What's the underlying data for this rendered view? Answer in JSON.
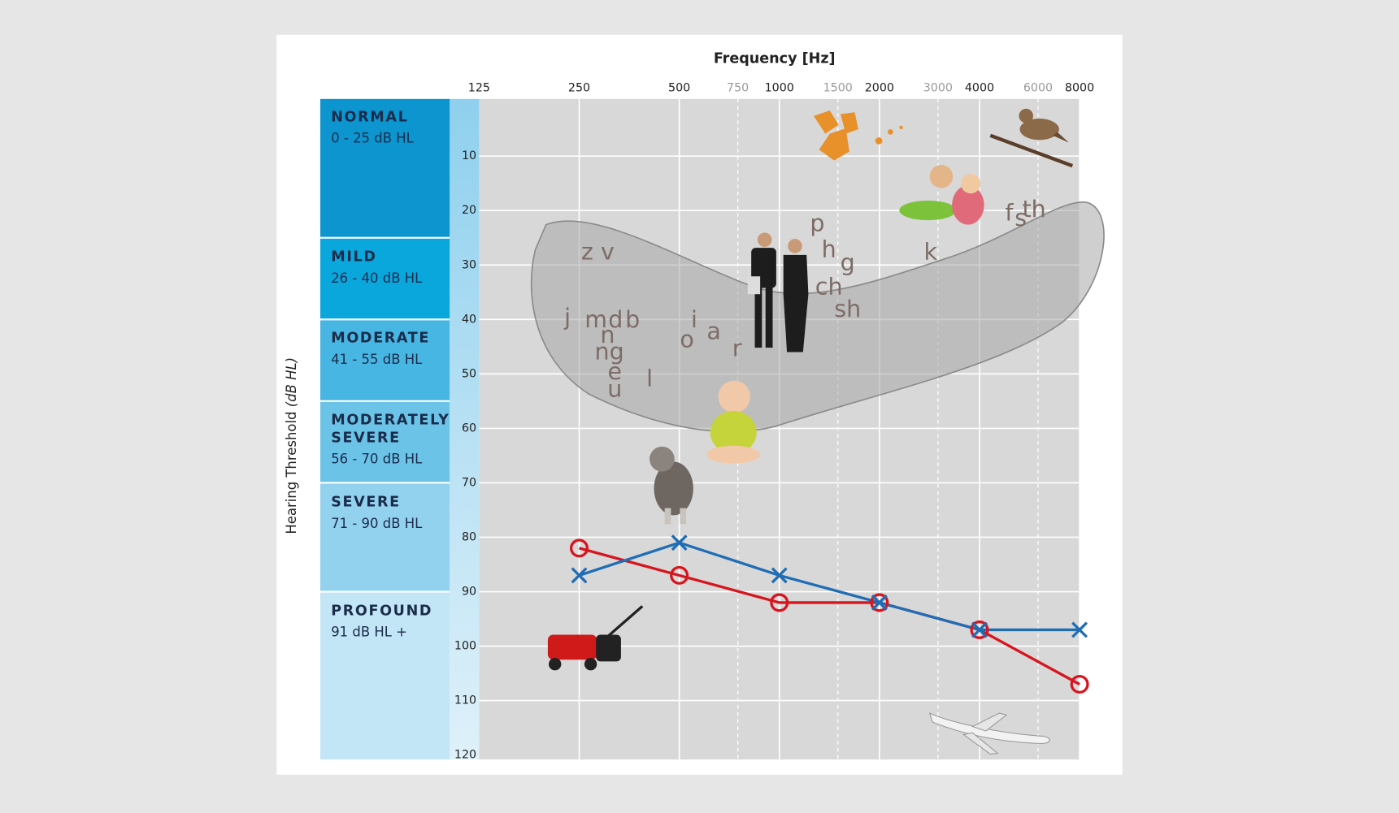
{
  "chart_data": {
    "type": "line",
    "x_label": "Frequency [Hz]",
    "y_label": "Hearing Threshold",
    "y_label_unit": "(dB HL)",
    "x_scale": "log",
    "y_inverted": true,
    "grid": true,
    "xlim": [
      125,
      8000
    ],
    "xticks": [
      125,
      250,
      500,
      1000,
      2000,
      4000,
      8000
    ],
    "xticks_minor": [
      750,
      1500,
      3000,
      6000
    ],
    "ylim": [
      0,
      120
    ],
    "yticks": [
      10,
      20,
      30,
      40,
      50,
      60,
      70,
      80,
      90,
      100,
      110,
      120
    ],
    "x": [
      250,
      500,
      1000,
      2000,
      4000,
      8000
    ],
    "series": [
      {
        "color": "#d7151e",
        "marker": "o",
        "values": [
          82,
          87,
          92,
          92,
          97,
          107
        ]
      },
      {
        "color": "#1f6db5",
        "marker": "x",
        "values": [
          87,
          81,
          87,
          92,
          97,
          97
        ]
      }
    ],
    "bands": [
      {
        "name": "NORMAL",
        "range": "0 - 25 dB HL",
        "ylim": [
          0,
          25
        ],
        "color": "#0c95cf"
      },
      {
        "name": "MILD",
        "range": "26 - 40 dB HL",
        "ylim": [
          25,
          40
        ],
        "color": "#0aa7dd"
      },
      {
        "name": "MODERATE",
        "range": "41 - 55 dB HL",
        "ylim": [
          40,
          55
        ],
        "color": "#48b6e2"
      },
      {
        "name": "MODERATELY SEVERE",
        "range": "56 - 70 dB HL",
        "ylim": [
          55,
          70
        ],
        "color": "#6cc3e8"
      },
      {
        "name": "SEVERE",
        "range": "71 - 90 dB HL",
        "ylim": [
          70,
          90
        ],
        "color": "#93d2ee"
      },
      {
        "name": "PROFOUND",
        "range": "91 dB HL +",
        "ylim": [
          90,
          120
        ],
        "color": "#c3e6f6"
      }
    ],
    "speech_sounds": [
      "z v",
      "j",
      "m",
      "d",
      "b",
      "n",
      "ng",
      "e",
      "u",
      "l",
      "o",
      "i",
      "a",
      "r",
      "p",
      "h",
      "g",
      "ch",
      "sh",
      "k",
      "f",
      "s",
      "th"
    ]
  }
}
